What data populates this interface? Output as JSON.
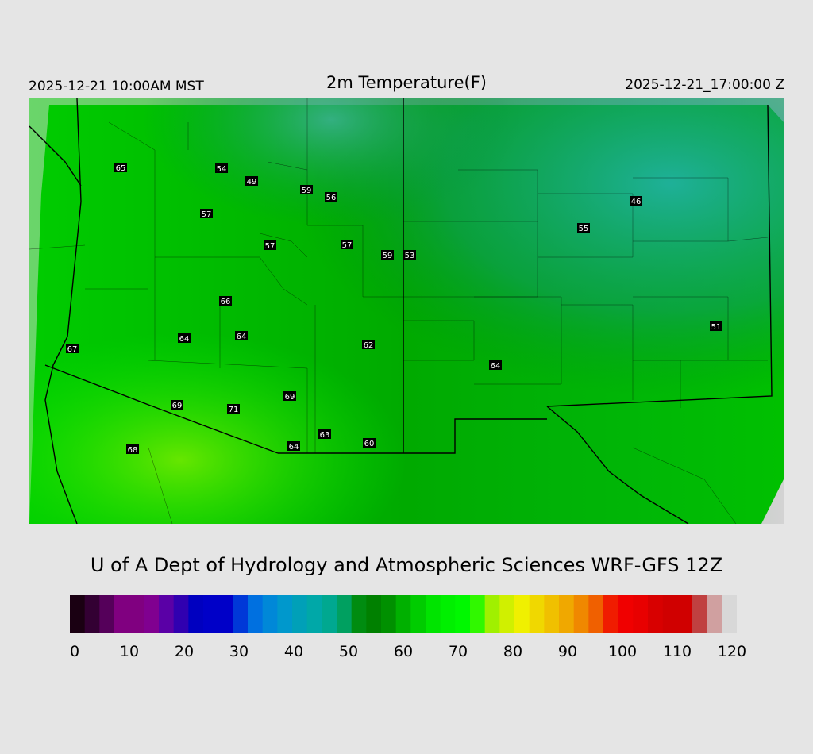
{
  "header": {
    "valid_local": "2025-12-21 10:00AM MST",
    "title": "2m Temperature(F)",
    "valid_utc": "2025-12-21_17:00:00 Z"
  },
  "credit": "U of A Dept of Hydrology and Atmospheric Sciences WRF-GFS 12Z",
  "colorbar": {
    "min": 0,
    "max": 120,
    "tick_labels": [
      "0",
      "10",
      "20",
      "30",
      "40",
      "50",
      "60",
      "70",
      "80",
      "90",
      "100",
      "110",
      "120"
    ],
    "colors": [
      "#1a0012",
      "#330033",
      "#55005a",
      "#800080",
      "#800080",
      "#800090",
      "#5a00a6",
      "#3000b0",
      "#0000c0",
      "#0000c8",
      "#0000c8",
      "#0038d8",
      "#0070e0",
      "#0088d8",
      "#0098cc",
      "#00a0b8",
      "#00a8a8",
      "#00a890",
      "#00a060",
      "#008c10",
      "#008000",
      "#009000",
      "#00b000",
      "#00cc00",
      "#00e400",
      "#00f000",
      "#00f800",
      "#30f800",
      "#a0f000",
      "#d0f000",
      "#f0f000",
      "#f0d800",
      "#f0c000",
      "#f0a800",
      "#f08800",
      "#f06000",
      "#f01c00",
      "#f00000",
      "#e80000",
      "#d80000",
      "#d00000",
      "#d00000",
      "#c04040",
      "#d0a0a0",
      "#d8d8d8"
    ]
  },
  "map": {
    "base_color": "#00c800",
    "labels": [
      {
        "value": "65"
      },
      {
        "value": "54"
      },
      {
        "value": "49"
      },
      {
        "value": "59"
      },
      {
        "value": "56"
      },
      {
        "value": "57"
      },
      {
        "value": "57"
      },
      {
        "value": "57"
      },
      {
        "value": "59"
      },
      {
        "value": "53"
      },
      {
        "value": "46"
      },
      {
        "value": "55"
      },
      {
        "value": "66"
      },
      {
        "value": "64"
      },
      {
        "value": "64"
      },
      {
        "value": "62"
      },
      {
        "value": "67"
      },
      {
        "value": "51"
      },
      {
        "value": "64"
      },
      {
        "value": "69"
      },
      {
        "value": "69"
      },
      {
        "value": "71"
      },
      {
        "value": "63"
      },
      {
        "value": "60"
      },
      {
        "value": "64"
      },
      {
        "value": "68"
      }
    ]
  }
}
